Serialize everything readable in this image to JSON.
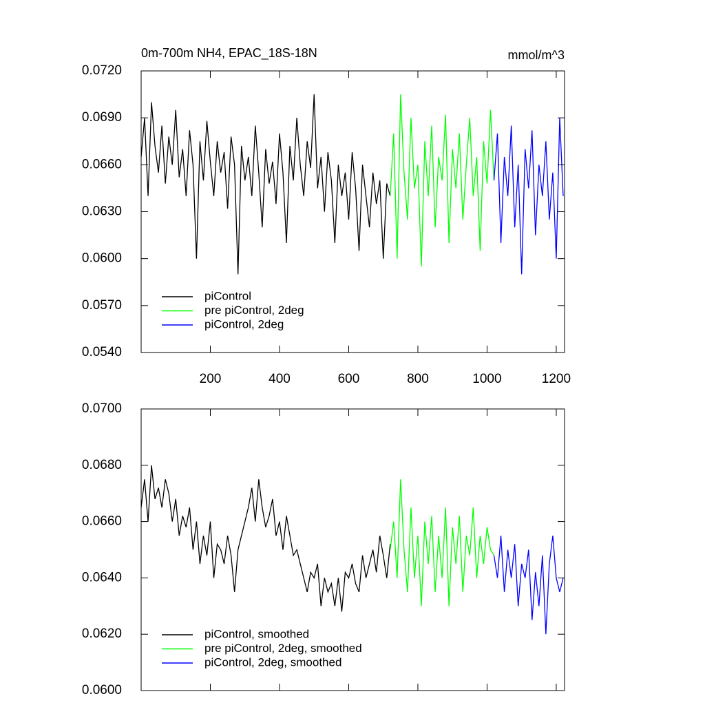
{
  "chart_data": [
    {
      "type": "line",
      "title": "0m-700m NH4, EPAC_18S-18N",
      "units": "mmol/m^3",
      "xlim": [
        0,
        1224
      ],
      "xticks": [
        200,
        400,
        600,
        800,
        1000,
        1200
      ],
      "xtick_labels": true,
      "ylim": [
        0.054,
        0.072
      ],
      "yticks": [
        {
          "value": 0.054,
          "label": "0.0540"
        },
        {
          "value": 0.057,
          "label": "0.0570"
        },
        {
          "value": 0.06,
          "label": "0.0600"
        },
        {
          "value": 0.063,
          "label": "0.0630"
        },
        {
          "value": 0.066,
          "label": "0.0660"
        },
        {
          "value": 0.069,
          "label": "0.0690"
        },
        {
          "value": 0.072,
          "label": "0.0720"
        }
      ],
      "legend": "lower left",
      "series": [
        {
          "name": "piControl",
          "color": "#000000",
          "x": [
            0,
            10,
            20,
            30,
            40,
            50,
            60,
            70,
            80,
            90,
            100,
            110,
            120,
            130,
            140,
            150,
            160,
            170,
            180,
            190,
            200,
            210,
            220,
            230,
            240,
            250,
            260,
            270,
            280,
            290,
            300,
            310,
            320,
            330,
            340,
            350,
            360,
            370,
            380,
            390,
            400,
            410,
            420,
            430,
            440,
            450,
            460,
            470,
            480,
            490,
            500,
            510,
            520,
            530,
            540,
            550,
            560,
            570,
            580,
            590,
            600,
            610,
            620,
            630,
            640,
            650,
            660,
            670,
            680,
            690,
            700,
            710,
            720
          ],
          "values": [
            0.0665,
            0.069,
            0.064,
            0.07,
            0.0672,
            0.0655,
            0.0685,
            0.0648,
            0.0678,
            0.066,
            0.0695,
            0.0652,
            0.067,
            0.064,
            0.0682,
            0.066,
            0.06,
            0.0675,
            0.065,
            0.0688,
            0.0662,
            0.064,
            0.0675,
            0.0655,
            0.0668,
            0.0632,
            0.0678,
            0.066,
            0.059,
            0.0672,
            0.065,
            0.0665,
            0.064,
            0.0685,
            0.0655,
            0.062,
            0.067,
            0.0648,
            0.0662,
            0.0635,
            0.068,
            0.0655,
            0.061,
            0.0672,
            0.065,
            0.069,
            0.066,
            0.064,
            0.0675,
            0.0658,
            0.0705,
            0.0645,
            0.0665,
            0.063,
            0.0668,
            0.065,
            0.061,
            0.066,
            0.064,
            0.0655,
            0.0625,
            0.0668,
            0.0645,
            0.0605,
            0.066,
            0.064,
            0.062,
            0.0655,
            0.0635,
            0.065,
            0.06,
            0.0648,
            0.064
          ]
        },
        {
          "name": "pre piControl, 2deg",
          "color": "#00ff00",
          "x": [
            720,
            730,
            740,
            750,
            760,
            770,
            780,
            790,
            800,
            810,
            820,
            830,
            840,
            850,
            860,
            870,
            880,
            890,
            900,
            910,
            920,
            930,
            940,
            950,
            960,
            970,
            980,
            990,
            1000,
            1010,
            1020
          ],
          "values": [
            0.064,
            0.068,
            0.06,
            0.0705,
            0.0655,
            0.0625,
            0.069,
            0.0645,
            0.066,
            0.0595,
            0.0675,
            0.064,
            0.0685,
            0.062,
            0.0665,
            0.065,
            0.0692,
            0.061,
            0.067,
            0.0645,
            0.068,
            0.0625,
            0.066,
            0.069,
            0.064,
            0.0665,
            0.0605,
            0.0675,
            0.0648,
            0.0695,
            0.065
          ]
        },
        {
          "name": "piControl, 2deg",
          "color": "#0000ff",
          "x": [
            1020,
            1030,
            1040,
            1050,
            1060,
            1070,
            1080,
            1090,
            1100,
            1110,
            1120,
            1130,
            1140,
            1150,
            1160,
            1170,
            1180,
            1190,
            1200,
            1210,
            1220
          ],
          "values": [
            0.065,
            0.068,
            0.061,
            0.0665,
            0.064,
            0.0685,
            0.062,
            0.066,
            0.059,
            0.067,
            0.0645,
            0.0682,
            0.0615,
            0.066,
            0.064,
            0.0675,
            0.0625,
            0.0655,
            0.06,
            0.069,
            0.064
          ]
        }
      ]
    },
    {
      "type": "line",
      "xlim": [
        0,
        1224
      ],
      "xticks": [
        200,
        400,
        600,
        800,
        1000,
        1200
      ],
      "xtick_labels": false,
      "ylim": [
        0.06,
        0.07
      ],
      "yticks": [
        {
          "value": 0.06,
          "label": "0.0600"
        },
        {
          "value": 0.062,
          "label": "0.0620"
        },
        {
          "value": 0.064,
          "label": "0.0640"
        },
        {
          "value": 0.066,
          "label": "0.0660"
        },
        {
          "value": 0.068,
          "label": "0.0680"
        },
        {
          "value": 0.07,
          "label": "0.0700"
        }
      ],
      "legend": "lower left",
      "series": [
        {
          "name": "piControl, smoothed",
          "color": "#000000",
          "x": [
            0,
            10,
            20,
            30,
            40,
            50,
            60,
            70,
            80,
            90,
            100,
            110,
            120,
            130,
            140,
            150,
            160,
            170,
            180,
            190,
            200,
            210,
            220,
            230,
            240,
            250,
            260,
            270,
            280,
            290,
            300,
            310,
            320,
            330,
            340,
            350,
            360,
            370,
            380,
            390,
            400,
            410,
            420,
            430,
            440,
            450,
            460,
            470,
            480,
            490,
            500,
            510,
            520,
            530,
            540,
            550,
            560,
            570,
            580,
            590,
            600,
            610,
            620,
            630,
            640,
            650,
            660,
            670,
            680,
            690,
            700,
            710,
            720
          ],
          "values": [
            0.0665,
            0.0675,
            0.066,
            0.068,
            0.0668,
            0.0672,
            0.0665,
            0.0675,
            0.067,
            0.066,
            0.0668,
            0.0655,
            0.0662,
            0.0658,
            0.0665,
            0.065,
            0.066,
            0.0645,
            0.0655,
            0.0648,
            0.066,
            0.064,
            0.0652,
            0.065,
            0.0645,
            0.0655,
            0.0648,
            0.0635,
            0.065,
            0.0655,
            0.066,
            0.0665,
            0.0672,
            0.066,
            0.0675,
            0.0665,
            0.0658,
            0.0662,
            0.0668,
            0.0655,
            0.066,
            0.065,
            0.0662,
            0.0655,
            0.0648,
            0.065,
            0.0645,
            0.064,
            0.0635,
            0.0642,
            0.064,
            0.0645,
            0.063,
            0.064,
            0.0635,
            0.0638,
            0.063,
            0.064,
            0.0628,
            0.0642,
            0.064,
            0.0645,
            0.0638,
            0.0635,
            0.0648,
            0.064,
            0.0645,
            0.065,
            0.0642,
            0.0655,
            0.0648,
            0.064,
            0.0652
          ]
        },
        {
          "name": "pre piControl, 2deg, smoothed",
          "color": "#00ff00",
          "x": [
            720,
            730,
            740,
            750,
            760,
            770,
            780,
            790,
            800,
            810,
            820,
            830,
            840,
            850,
            860,
            870,
            880,
            890,
            900,
            910,
            920,
            930,
            940,
            950,
            960,
            970,
            980,
            990,
            1000,
            1010,
            1020
          ],
          "values": [
            0.065,
            0.066,
            0.064,
            0.0675,
            0.065,
            0.0635,
            0.0665,
            0.064,
            0.0655,
            0.063,
            0.066,
            0.0645,
            0.0662,
            0.0635,
            0.0655,
            0.064,
            0.0665,
            0.063,
            0.0658,
            0.0645,
            0.0662,
            0.0635,
            0.0655,
            0.0648,
            0.0665,
            0.064,
            0.0655,
            0.0645,
            0.0658,
            0.065,
            0.0648
          ]
        },
        {
          "name": "piControl, 2deg, smoothed",
          "color": "#0000ff",
          "x": [
            1020,
            1030,
            1040,
            1050,
            1060,
            1070,
            1080,
            1090,
            1100,
            1110,
            1120,
            1130,
            1140,
            1150,
            1160,
            1170,
            1180,
            1190,
            1200,
            1210,
            1220
          ],
          "values": [
            0.0648,
            0.064,
            0.0655,
            0.0635,
            0.065,
            0.064,
            0.0652,
            0.063,
            0.0645,
            0.064,
            0.065,
            0.0625,
            0.0642,
            0.063,
            0.0648,
            0.062,
            0.0645,
            0.0655,
            0.064,
            0.0635,
            0.064
          ]
        }
      ]
    }
  ]
}
